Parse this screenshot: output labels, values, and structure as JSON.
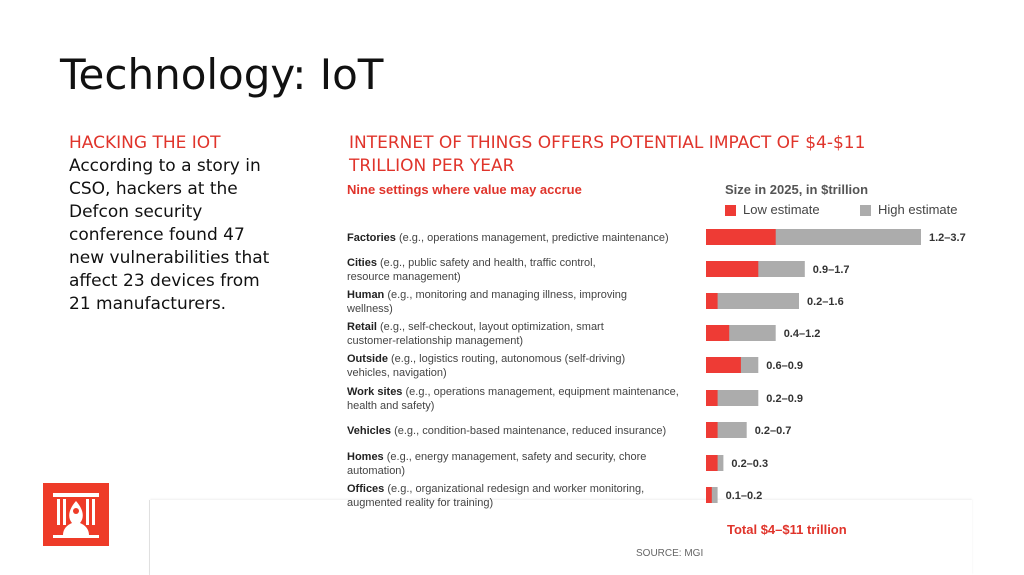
{
  "slide": {
    "title": "Technology: IoT",
    "left_heading": "HACKING THE IOT",
    "left_body": "According to a story in CSO, hackers at the Defcon security conference found 47 new vulnerabilities that affect 23 devices from 21 manufacturers.",
    "chart_heading": "INTERNET OF THINGS OFFERS POTENTIAL IMPACT OF $4-$11 TRILLION PER YEAR"
  },
  "colors": {
    "accent": "#e0342b",
    "low": "#ee3b35",
    "high": "#acacac"
  },
  "chart_data": {
    "type": "bar",
    "title": "Nine settings where value may accrue",
    "subtitle": "Size in 2025, in $trillion",
    "series": [
      {
        "name": "Low estimate",
        "values": [
          1.2,
          0.9,
          0.2,
          0.4,
          0.6,
          0.2,
          0.2,
          0.2,
          0.1
        ]
      },
      {
        "name": "High estimate",
        "values": [
          3.7,
          1.7,
          1.6,
          1.2,
          0.9,
          0.9,
          0.7,
          0.3,
          0.2
        ]
      }
    ],
    "categories": [
      {
        "name": "Factories",
        "desc": "(e.g., operations management, predictive maintenance)",
        "label": "1.2–3.7"
      },
      {
        "name": "Cities",
        "desc": "(e.g., public safety and health, traffic control, resource management)",
        "label": "0.9–1.7"
      },
      {
        "name": "Human",
        "desc": "(e.g., monitoring and managing illness, improving wellness)",
        "label": "0.2–1.6"
      },
      {
        "name": "Retail",
        "desc": "(e.g., self-checkout, layout optimization, smart customer-relationship management)",
        "label": "0.4–1.2"
      },
      {
        "name": "Outside",
        "desc": "(e.g., logistics routing, autonomous (self-driving) vehicles, navigation)",
        "label": "0.6–0.9"
      },
      {
        "name": "Work sites",
        "desc": "(e.g., operations management, equipment maintenance, health and safety)",
        "label": "0.2–0.9"
      },
      {
        "name": "Vehicles",
        "desc": "(e.g., condition-based maintenance, reduced insurance)",
        "label": "0.2–0.7"
      },
      {
        "name": "Homes",
        "desc": "(e.g., energy management, safety and security, chore automation)",
        "label": "0.2–0.3"
      },
      {
        "name": "Offices",
        "desc": "(e.g., organizational redesign and worker monitoring, augmented reality for training)",
        "label": "0.1–0.2"
      }
    ],
    "total": "Total $4–$11 trillion",
    "source": "SOURCE: MGI",
    "xlim": [
      0,
      3.7
    ]
  }
}
